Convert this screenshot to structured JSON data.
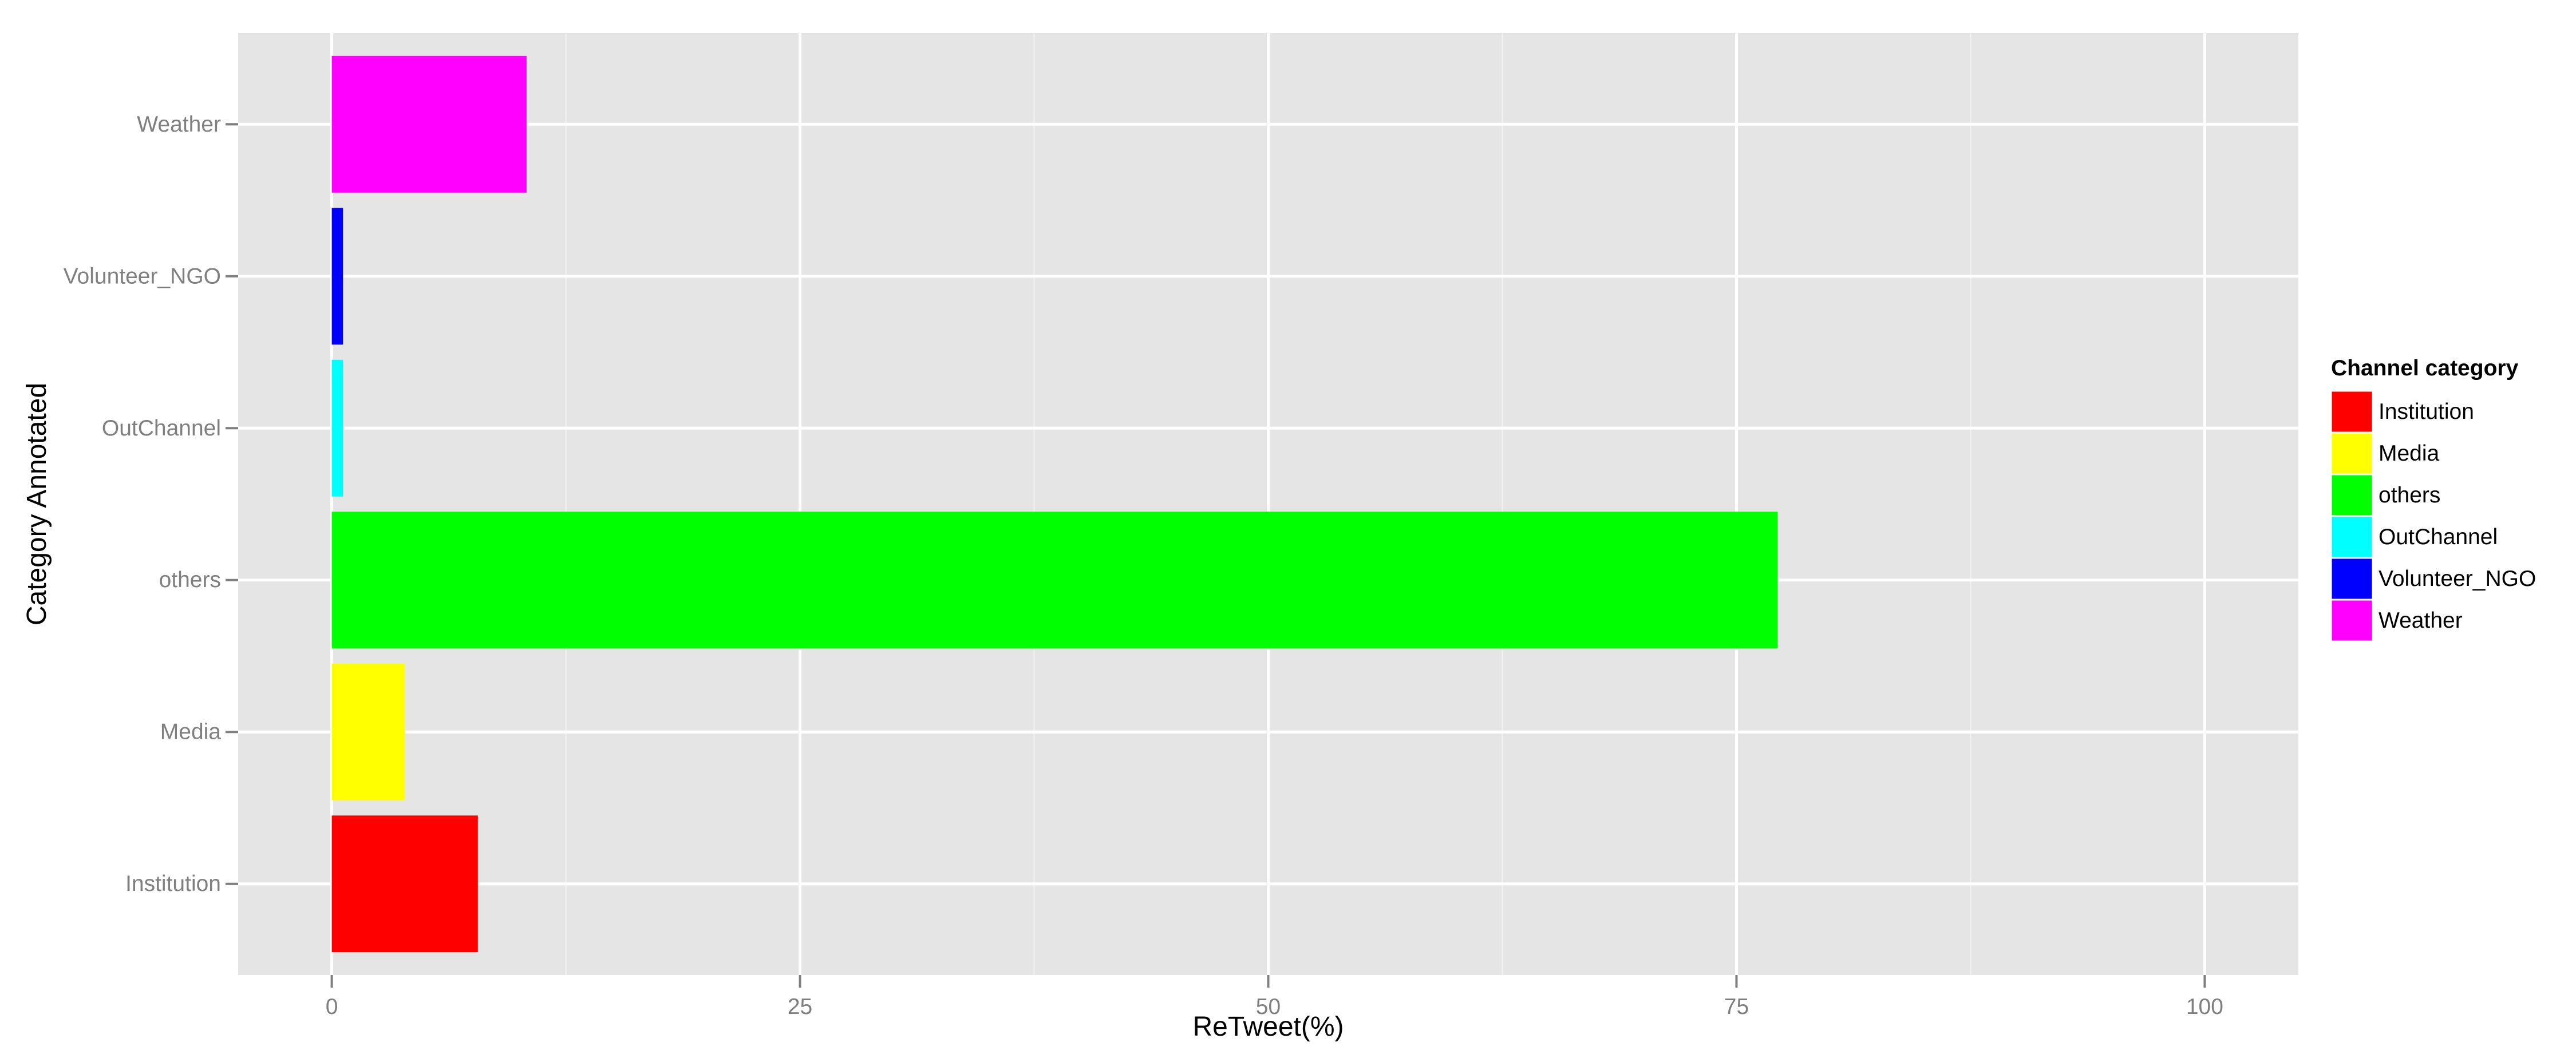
{
  "chart_data": {
    "type": "bar",
    "orientation": "horizontal",
    "title": "",
    "xlabel": "ReTweet(%)",
    "ylabel": "Category Annotated",
    "categories": [
      "Institution",
      "Media",
      "others",
      "OutChannel",
      "Volunteer_NGO",
      "Weather"
    ],
    "values": [
      7.8,
      3.9,
      77.2,
      0.6,
      0.6,
      10.4
    ],
    "colors": [
      "#FF0000",
      "#FFFF00",
      "#00FF00",
      "#00FFFF",
      "#0000FF",
      "#FF00FF"
    ],
    "xlim": [
      -5,
      105
    ],
    "xticks": [
      0,
      25,
      50,
      75,
      100
    ],
    "grid": true,
    "panel_background": "#E5E5E5",
    "gridline_color": "#FFFFFF",
    "legend": {
      "title": "Channel category",
      "placement": "right",
      "entries": [
        "Institution",
        "Media",
        "others",
        "OutChannel",
        "Volunteer_NGO",
        "Weather"
      ]
    }
  }
}
